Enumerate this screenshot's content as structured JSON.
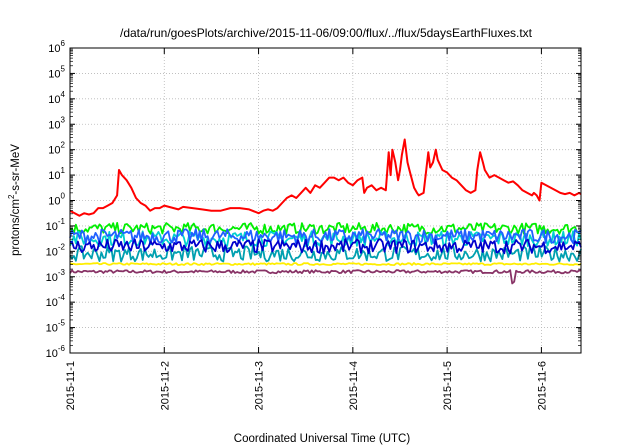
{
  "chart_data": {
    "type": "line",
    "title": "/data/run/goesPlots/archive/2015-11-06/09:00/flux/../flux/5daysEarthFluxes.txt",
    "xlabel": "Coordinated Universal Time (UTC)",
    "ylabel": "protons/cm²-s-sr-MeV",
    "ylabel_parts": {
      "before": "protons/cm",
      "sup": "2",
      "after": "-s-sr-MeV"
    },
    "y_scale": "log",
    "ylim": [
      1e-06,
      1000000.0
    ],
    "y_ticks": [
      {
        "base": "10",
        "exp": "-6",
        "value": -6
      },
      {
        "base": "10",
        "exp": "-5",
        "value": -5
      },
      {
        "base": "10",
        "exp": "-4",
        "value": -4
      },
      {
        "base": "10",
        "exp": "-3",
        "value": -3
      },
      {
        "base": "10",
        "exp": "-2",
        "value": -2
      },
      {
        "base": "10",
        "exp": "-1",
        "value": -1
      },
      {
        "base": "10",
        "exp": "0",
        "value": 0
      },
      {
        "base": "10",
        "exp": "1",
        "value": 1
      },
      {
        "base": "10",
        "exp": "2",
        "value": 2
      },
      {
        "base": "10",
        "exp": "3",
        "value": 3
      },
      {
        "base": "10",
        "exp": "4",
        "value": 4
      },
      {
        "base": "10",
        "exp": "5",
        "value": 5
      },
      {
        "base": "10",
        "exp": "6",
        "value": 6
      }
    ],
    "x_ticks": [
      "2015-11-1",
      "2015-11-2",
      "2015-11-3",
      "2015-11-4",
      "2015-11-5",
      "2015-11-6"
    ],
    "xlim_days": [
      0,
      5.42
    ],
    "grid": true,
    "legend": "none",
    "series": [
      {
        "color": "#ff0000",
        "log10_values": [
          [
            0,
            -0.4
          ],
          [
            0.05,
            -0.5
          ],
          [
            0.1,
            -0.6
          ],
          [
            0.15,
            -0.5
          ],
          [
            0.2,
            -0.55
          ],
          [
            0.25,
            -0.5
          ],
          [
            0.3,
            -0.3
          ],
          [
            0.35,
            -0.3
          ],
          [
            0.4,
            -0.2
          ],
          [
            0.45,
            -0.1
          ],
          [
            0.5,
            0.2
          ],
          [
            0.52,
            1.2
          ],
          [
            0.55,
            1.0
          ],
          [
            0.6,
            0.8
          ],
          [
            0.65,
            0.5
          ],
          [
            0.7,
            0.1
          ],
          [
            0.75,
            -0.1
          ],
          [
            0.8,
            -0.2
          ],
          [
            0.85,
            -0.4
          ],
          [
            0.9,
            -0.3
          ],
          [
            0.95,
            -0.3
          ],
          [
            1.0,
            -0.2
          ],
          [
            1.05,
            -0.25
          ],
          [
            1.1,
            -0.3
          ],
          [
            1.15,
            -0.35
          ],
          [
            1.2,
            -0.25
          ],
          [
            1.3,
            -0.3
          ],
          [
            1.4,
            -0.35
          ],
          [
            1.5,
            -0.4
          ],
          [
            1.6,
            -0.4
          ],
          [
            1.7,
            -0.3
          ],
          [
            1.8,
            -0.3
          ],
          [
            1.9,
            -0.35
          ],
          [
            2.0,
            -0.5
          ],
          [
            2.05,
            -0.4
          ],
          [
            2.1,
            -0.35
          ],
          [
            2.15,
            -0.4
          ],
          [
            2.2,
            -0.3
          ],
          [
            2.25,
            -0.1
          ],
          [
            2.3,
            0.1
          ],
          [
            2.35,
            0.2
          ],
          [
            2.4,
            0.1
          ],
          [
            2.45,
            0.3
          ],
          [
            2.5,
            0.5
          ],
          [
            2.55,
            0.3
          ],
          [
            2.6,
            0.6
          ],
          [
            2.65,
            0.5
          ],
          [
            2.7,
            0.7
          ],
          [
            2.75,
            0.9
          ],
          [
            2.8,
            0.9
          ],
          [
            2.85,
            0.8
          ],
          [
            2.9,
            0.9
          ],
          [
            2.95,
            0.7
          ],
          [
            3.0,
            0.6
          ],
          [
            3.05,
            0.8
          ],
          [
            3.1,
            0.9
          ],
          [
            3.12,
            0.3
          ],
          [
            3.15,
            0.5
          ],
          [
            3.2,
            0.6
          ],
          [
            3.25,
            0.4
          ],
          [
            3.3,
            0.5
          ],
          [
            3.35,
            0.4
          ],
          [
            3.38,
            1.9
          ],
          [
            3.4,
            1.0
          ],
          [
            3.42,
            2.0
          ],
          [
            3.45,
            1.5
          ],
          [
            3.48,
            0.8
          ],
          [
            3.5,
            1.2
          ],
          [
            3.52,
            1.8
          ],
          [
            3.55,
            2.4
          ],
          [
            3.58,
            1.5
          ],
          [
            3.6,
            1.2
          ],
          [
            3.65,
            0.5
          ],
          [
            3.68,
            0.3
          ],
          [
            3.7,
            0.2
          ],
          [
            3.75,
            0.3
          ],
          [
            3.8,
            1.9
          ],
          [
            3.82,
            1.3
          ],
          [
            3.85,
            1.5
          ],
          [
            3.88,
            2.0
          ],
          [
            3.9,
            1.6
          ],
          [
            3.95,
            1.2
          ],
          [
            4.0,
            1.1
          ],
          [
            4.05,
            0.9
          ],
          [
            4.1,
            0.8
          ],
          [
            4.15,
            0.6
          ],
          [
            4.2,
            0.4
          ],
          [
            4.25,
            0.3
          ],
          [
            4.3,
            0.4
          ],
          [
            4.32,
            1.2
          ],
          [
            4.35,
            1.9
          ],
          [
            4.38,
            1.5
          ],
          [
            4.4,
            1.2
          ],
          [
            4.45,
            0.9
          ],
          [
            4.5,
            1.0
          ],
          [
            4.55,
            0.9
          ],
          [
            4.6,
            0.8
          ],
          [
            4.65,
            0.7
          ],
          [
            4.7,
            0.75
          ],
          [
            4.75,
            0.6
          ],
          [
            4.8,
            0.4
          ],
          [
            4.85,
            0.3
          ],
          [
            4.9,
            0.2
          ],
          [
            4.92,
            0.3
          ],
          [
            4.95,
            0.2
          ],
          [
            4.98,
            0.0
          ],
          [
            5.0,
            0.7
          ],
          [
            5.05,
            0.6
          ],
          [
            5.1,
            0.5
          ],
          [
            5.15,
            0.4
          ],
          [
            5.2,
            0.3
          ],
          [
            5.25,
            0.25
          ],
          [
            5.3,
            0.3
          ],
          [
            5.35,
            0.2
          ],
          [
            5.4,
            0.3
          ],
          [
            5.42,
            0.25
          ]
        ]
      },
      {
        "color": "#00ee00",
        "log10_values": [
          [
            0,
            -1.1
          ],
          [
            5.42,
            -1.1
          ]
        ],
        "noise": 0.22
      },
      {
        "color": "#00d0d0",
        "log10_values": [
          [
            0,
            -1.5
          ],
          [
            5.42,
            -1.5
          ]
        ],
        "noise": 0.3
      },
      {
        "color": "#2060ff",
        "log10_values": [
          [
            0,
            -1.4
          ],
          [
            5.42,
            -1.4
          ]
        ],
        "noise": 0.28
      },
      {
        "color": "#0000cc",
        "log10_values": [
          [
            0,
            -1.8
          ],
          [
            5.42,
            -1.8
          ]
        ],
        "noise": 0.28
      },
      {
        "color": "#00a0b0",
        "log10_values": [
          [
            0,
            -2.1
          ],
          [
            5.42,
            -2.1
          ]
        ],
        "noise": 0.3
      },
      {
        "color": "#ffee00",
        "log10_values": [
          [
            0,
            -2.5
          ],
          [
            5.42,
            -2.5
          ]
        ],
        "noise": 0.04
      },
      {
        "color": "#883366",
        "log10_values": [
          [
            0,
            -2.8
          ],
          [
            4.68,
            -2.8
          ],
          [
            4.7,
            -3.7
          ],
          [
            4.72,
            -2.8
          ],
          [
            5.42,
            -2.8
          ]
        ],
        "noise": 0.06
      }
    ]
  }
}
